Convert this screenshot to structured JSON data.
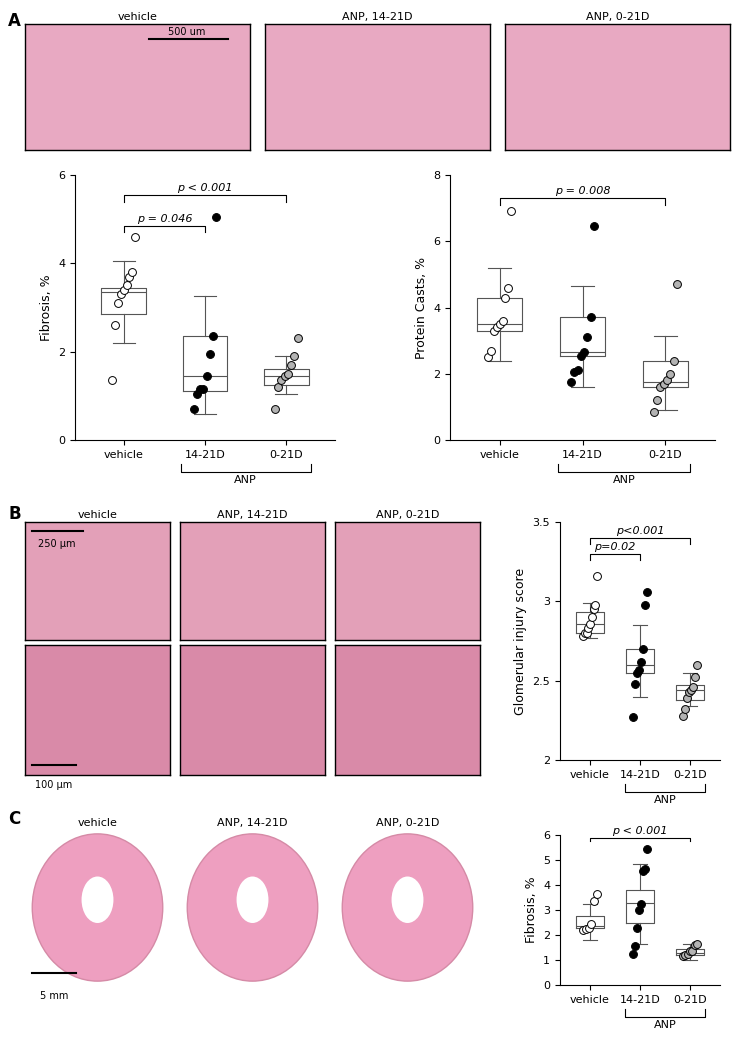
{
  "panels": [
    {
      "label": "A",
      "images": [
        "vehicle",
        "ANP, 14-21D",
        "ANP, 0-21D"
      ],
      "scale_bar": "500 um"
    },
    {
      "label": "B",
      "images": [
        "vehicle",
        "ANP, 14-21D",
        "ANP, 0-21D"
      ],
      "scale_bar": "250 µm",
      "zoom_scale_bar": "100 µm"
    },
    {
      "label": "C",
      "images": [
        "vehicle",
        "ANP, 14-21D",
        "ANP, 0-21D"
      ],
      "scale_bar": "5 mm"
    }
  ],
  "chart_data": [
    {
      "type": "box",
      "y_label": "Fibrosis, %",
      "categories": [
        "vehicle",
        "14-21D",
        "0-21D"
      ],
      "colors": [
        "#ffffff",
        "#000000",
        "#b3b3b3"
      ],
      "points": [
        [
          1.35,
          2.6,
          3.1,
          3.3,
          3.4,
          3.5,
          3.7,
          3.8,
          4.6
        ],
        [
          0.7,
          1.05,
          1.15,
          1.15,
          1.45,
          1.95,
          2.35,
          5.05
        ],
        [
          0.7,
          1.2,
          1.35,
          1.45,
          1.5,
          1.7,
          1.9,
          2.3
        ]
      ],
      "boxes": [
        {
          "q1": 2.85,
          "median": 3.35,
          "q3": 3.45,
          "whisker_low": 2.2,
          "whisker_high": 4.05
        },
        {
          "q1": 1.1,
          "median": 1.45,
          "q3": 2.35,
          "whisker_low": 0.6,
          "whisker_high": 3.25
        },
        {
          "q1": 1.25,
          "median": 1.45,
          "q3": 1.6,
          "whisker_low": 1.05,
          "whisker_high": 1.9
        }
      ],
      "ylim": [
        0,
        6
      ],
      "yticks": [
        0,
        2,
        4,
        6
      ],
      "comparisons": [
        {
          "between": [
            0,
            1
          ],
          "y": 4.85,
          "text": "p = 0.046"
        },
        {
          "between": [
            0,
            2
          ],
          "y": 5.55,
          "text": "p < 0.001"
        }
      ],
      "group_label": {
        "text": "ANP",
        "categories": [
          1,
          2
        ]
      }
    },
    {
      "type": "box",
      "y_label": "Protein Casts, %",
      "categories": [
        "vehicle",
        "14-21D",
        "0-21D"
      ],
      "colors": [
        "#ffffff",
        "#000000",
        "#b3b3b3"
      ],
      "points": [
        [
          2.5,
          2.7,
          3.3,
          3.4,
          3.5,
          3.6,
          4.3,
          4.6,
          6.9
        ],
        [
          1.75,
          2.05,
          2.1,
          2.55,
          2.65,
          3.1,
          3.7,
          6.45
        ],
        [
          0.85,
          1.2,
          1.6,
          1.7,
          1.8,
          2.0,
          2.4,
          4.7
        ]
      ],
      "boxes": [
        {
          "q1": 3.3,
          "median": 3.5,
          "q3": 4.3,
          "whisker_low": 2.4,
          "whisker_high": 5.2
        },
        {
          "q1": 2.55,
          "median": 2.65,
          "q3": 3.7,
          "whisker_low": 1.6,
          "whisker_high": 4.65
        },
        {
          "q1": 1.6,
          "median": 1.75,
          "q3": 2.4,
          "whisker_low": 0.9,
          "whisker_high": 3.15
        }
      ],
      "ylim": [
        0,
        8
      ],
      "yticks": [
        0,
        2,
        4,
        6,
        8
      ],
      "comparisons": [
        {
          "between": [
            0,
            2
          ],
          "y": 7.3,
          "text": "p = 0.008"
        }
      ],
      "group_label": {
        "text": "ANP",
        "categories": [
          1,
          2
        ]
      }
    },
    {
      "type": "box",
      "y_label": "Glomerular injury score",
      "categories": [
        "vehicle",
        "14-21D",
        "0-21D"
      ],
      "colors": [
        "#ffffff",
        "#000000",
        "#b3b3b3"
      ],
      "points": [
        [
          2.78,
          2.8,
          2.8,
          2.83,
          2.86,
          2.9,
          2.95,
          2.98,
          3.16
        ],
        [
          2.27,
          2.48,
          2.55,
          2.57,
          2.62,
          2.7,
          2.98,
          3.06
        ],
        [
          2.28,
          2.32,
          2.39,
          2.43,
          2.44,
          2.46,
          2.52,
          2.6
        ]
      ],
      "boxes": [
        {
          "q1": 2.8,
          "median": 2.86,
          "q3": 2.93,
          "whisker_low": 2.77,
          "whisker_high": 2.99
        },
        {
          "q1": 2.55,
          "median": 2.6,
          "q3": 2.7,
          "whisker_low": 2.4,
          "whisker_high": 2.85
        },
        {
          "q1": 2.38,
          "median": 2.44,
          "q3": 2.47,
          "whisker_low": 2.34,
          "whisker_high": 2.55
        }
      ],
      "ylim": [
        2,
        3.5
      ],
      "yticks": [
        2,
        2.5,
        3,
        3.5
      ],
      "comparisons": [
        {
          "between": [
            0,
            1
          ],
          "y": 3.3,
          "text": "p=0.02"
        },
        {
          "between": [
            0,
            2
          ],
          "y": 3.4,
          "text": "p<0.001"
        }
      ],
      "group_label": {
        "text": "ANP",
        "categories": [
          1,
          2
        ]
      }
    },
    {
      "type": "box",
      "y_label": "Fibrosis, %",
      "categories": [
        "vehicle",
        "14-21D",
        "0-21D"
      ],
      "colors": [
        "#ffffff",
        "#000000",
        "#b3b3b3"
      ],
      "points": [
        [
          2.2,
          2.25,
          2.3,
          2.45,
          3.35,
          3.65
        ],
        [
          1.25,
          1.55,
          2.3,
          3.0,
          3.25,
          4.55,
          4.65,
          5.45
        ],
        [
          1.15,
          1.2,
          1.25,
          1.35,
          1.35,
          1.6,
          1.65
        ]
      ],
      "boxes": [
        {
          "q1": 2.3,
          "median": 2.35,
          "q3": 2.75,
          "whisker_low": 1.8,
          "whisker_high": 3.25
        },
        {
          "q1": 2.5,
          "median": 3.3,
          "q3": 3.8,
          "whisker_low": 1.65,
          "whisker_high": 4.85
        },
        {
          "q1": 1.2,
          "median": 1.3,
          "q3": 1.45,
          "whisker_low": 1.0,
          "whisker_high": 1.65
        }
      ],
      "ylim": [
        0,
        6
      ],
      "yticks": [
        0,
        1,
        2,
        3,
        4,
        5,
        6
      ],
      "comparisons": [
        {
          "between": [
            0,
            2
          ],
          "y": 5.9,
          "text": "p < 0.001"
        }
      ],
      "group_label": {
        "text": "ANP",
        "categories": [
          1,
          2
        ]
      }
    }
  ]
}
